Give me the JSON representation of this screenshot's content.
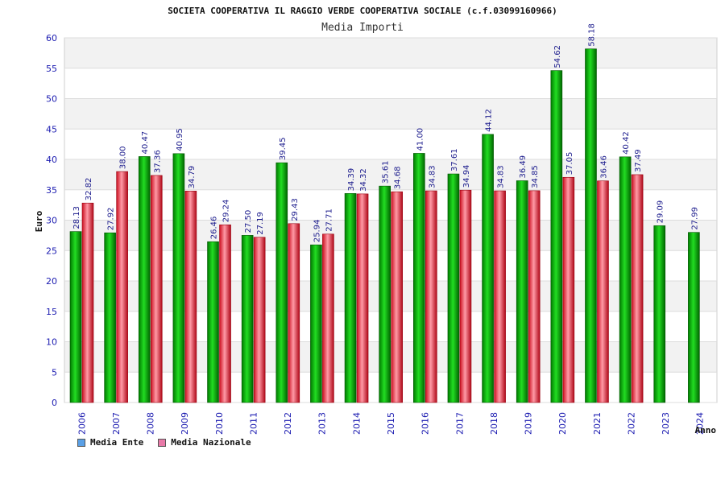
{
  "chart_data": {
    "type": "bar",
    "title": "SOCIETA COOPERATIVA IL RAGGIO VERDE COOPERATIVA SOCIALE (c.f.03099160966)",
    "subtitle": "Media Importi",
    "xlabel": "Anno",
    "ylabel": "Euro",
    "ylim": [
      0,
      60
    ],
    "yticks": [
      0,
      5,
      10,
      15,
      20,
      25,
      30,
      35,
      40,
      45,
      50,
      55,
      60
    ],
    "categories": [
      "2006",
      "2007",
      "2008",
      "2009",
      "2010",
      "2011",
      "2012",
      "2013",
      "2014",
      "2015",
      "2016",
      "2017",
      "2018",
      "2019",
      "2020",
      "2021",
      "2022",
      "2023",
      "2024"
    ],
    "series": [
      {
        "name": "Media Ente",
        "color": "#00b400",
        "values": [
          28.13,
          27.92,
          40.47,
          40.95,
          26.46,
          27.5,
          39.45,
          25.94,
          34.39,
          35.61,
          41.0,
          37.61,
          44.12,
          36.49,
          54.62,
          58.18,
          40.42,
          29.09,
          27.99
        ],
        "labels": [
          "28.13",
          "27.92",
          "40.47",
          "40.95",
          "26.46",
          "27.50",
          "39.45",
          "25.94",
          "34.39",
          "35.61",
          "41.00",
          "37.61",
          "44.12",
          "36.49",
          "54.62",
          "58.18",
          "40.42",
          "29.09",
          "27.99"
        ]
      },
      {
        "name": "Media Nazionale",
        "color": "#e02020",
        "values": [
          32.82,
          38.0,
          37.36,
          34.79,
          29.24,
          27.19,
          29.43,
          27.71,
          34.32,
          34.68,
          34.83,
          34.94,
          34.83,
          34.85,
          37.05,
          36.46,
          37.49,
          null,
          null
        ],
        "labels": [
          "32.82",
          "38.00",
          "37.36",
          "34.79",
          "29.24",
          "27.19",
          "29.43",
          "27.71",
          "34.32",
          "34.68",
          "34.83",
          "34.94",
          "34.83",
          "34.85",
          "37.05",
          "36.46",
          "37.49",
          null,
          null
        ]
      }
    ],
    "legend": [
      {
        "name": "Media Ente",
        "color": "#5aa0e6"
      },
      {
        "name": "Media Nazionale",
        "color": "#e87aa8"
      }
    ],
    "legend_position": "bottom-left",
    "grid": true
  }
}
